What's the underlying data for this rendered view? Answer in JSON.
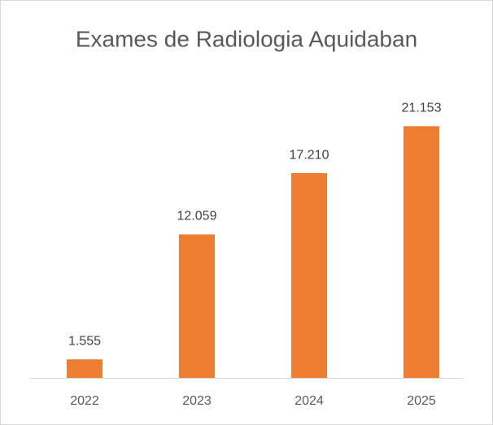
{
  "chart_data": {
    "type": "bar",
    "title": "Exames de Radiologia Aquidaban",
    "categories": [
      "2022",
      "2023",
      "2024",
      "2025"
    ],
    "values": [
      1555,
      12059,
      17210,
      21153
    ],
    "value_labels": [
      "1.555",
      "12.059",
      "17.210",
      "21.153"
    ],
    "color": "#ed7d31",
    "ylim": [
      0,
      25000
    ]
  }
}
